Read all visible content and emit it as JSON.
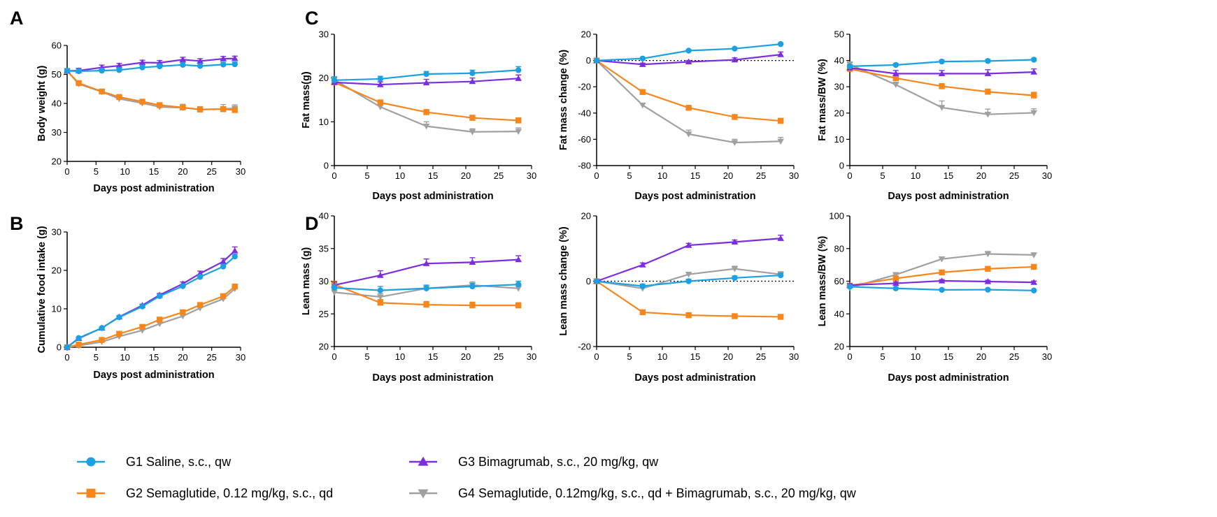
{
  "panel_letters": {
    "A": "A",
    "B": "B",
    "C": "C",
    "D": "D"
  },
  "legend": [
    {
      "id": "G1",
      "label": "G1 Saline, s.c., qw",
      "color": "#1ba1e2",
      "marker": "circle"
    },
    {
      "id": "G2",
      "label": "G2 Semaglutide, 0.12 mg/kg, s.c., qd",
      "color": "#f7861c",
      "marker": "square"
    },
    {
      "id": "G3",
      "label": "G3 Bimagrumab, s.c., 20 mg/kg, qw",
      "color": "#7b2ee0",
      "marker": "triangle-up"
    },
    {
      "id": "G4",
      "label": "G4 Semaglutide, 0.12mg/kg, s.c., qd + Bimagrumab, s.c., 20 mg/kg, qw",
      "color": "#a0a0a0",
      "marker": "triangle-down"
    }
  ],
  "chart_data": [
    {
      "id": "A",
      "type": "line",
      "xlabel": "Days post administration",
      "ylabel": "Body weight (g)",
      "xlim": [
        0,
        30
      ],
      "ylim": [
        20,
        60
      ],
      "xticks": [
        0,
        5,
        10,
        15,
        20,
        25,
        30
      ],
      "yticks": [
        20,
        30,
        40,
        50,
        60
      ],
      "x": [
        0,
        2,
        6,
        9,
        13,
        16,
        20,
        23,
        27,
        29
      ],
      "series": [
        {
          "name": "G1",
          "values": [
            51.2,
            51.1,
            51.3,
            51.5,
            52.4,
            52.8,
            53.3,
            52.9,
            53.4,
            53.5
          ],
          "err": [
            0.8,
            0.8,
            0.8,
            0.8,
            0.8,
            0.8,
            0.8,
            0.8,
            0.8,
            0.8
          ]
        },
        {
          "name": "G2",
          "values": [
            51.2,
            47.0,
            44.1,
            42.2,
            40.6,
            39.4,
            38.6,
            37.9,
            38.0,
            37.7
          ],
          "err": [
            0.8,
            0.8,
            0.8,
            0.8,
            0.8,
            0.8,
            0.8,
            0.8,
            0.8,
            0.8
          ]
        },
        {
          "name": "G3",
          "values": [
            51.2,
            51.3,
            52.4,
            53.0,
            54.1,
            54.0,
            55.1,
            54.6,
            55.4,
            55.5
          ],
          "err": [
            0.8,
            0.8,
            0.8,
            0.8,
            0.8,
            0.8,
            0.8,
            0.8,
            0.8,
            0.8
          ]
        },
        {
          "name": "G4",
          "values": [
            51.2,
            46.7,
            44.0,
            41.6,
            40.1,
            38.8,
            38.5,
            37.9,
            38.1,
            38.3
          ],
          "err": [
            0.8,
            0.8,
            0.8,
            0.8,
            0.8,
            0.8,
            1.2,
            1.0,
            1.5,
            1.2
          ]
        }
      ]
    },
    {
      "id": "B",
      "type": "line",
      "xlabel": "Days post administration",
      "ylabel": "Cumulative food intake (g)",
      "xlim": [
        0,
        30
      ],
      "ylim": [
        0,
        30
      ],
      "xticks": [
        0,
        5,
        10,
        15,
        20,
        25,
        30
      ],
      "yticks": [
        0,
        10,
        20,
        30
      ],
      "x": [
        0,
        2,
        6,
        9,
        13,
        16,
        20,
        23,
        27,
        29
      ],
      "series": [
        {
          "name": "G1",
          "values": [
            0,
            2.4,
            5.0,
            7.8,
            10.6,
            13.3,
            15.9,
            18.3,
            21.0,
            23.6
          ],
          "err": [
            0,
            0.2,
            0.2,
            0.3,
            0.3,
            0.4,
            0.5,
            0.5,
            0.6,
            0.6
          ]
        },
        {
          "name": "G2",
          "values": [
            0,
            0.7,
            1.9,
            3.5,
            5.3,
            7.2,
            9.1,
            11.0,
            13.3,
            15.8
          ],
          "err": [
            0,
            0.2,
            0.2,
            0.3,
            0.3,
            0.4,
            0.4,
            0.5,
            0.5,
            0.6
          ]
        },
        {
          "name": "G3",
          "values": [
            0,
            2.3,
            5.0,
            7.9,
            10.9,
            13.6,
            16.5,
            19.2,
            22.3,
            25.1
          ],
          "err": [
            0,
            0.2,
            0.2,
            0.3,
            0.3,
            0.4,
            0.5,
            0.6,
            0.8,
            1.0
          ]
        },
        {
          "name": "G4",
          "values": [
            0,
            0.4,
            1.4,
            2.8,
            4.4,
            6.1,
            8.1,
            10.2,
            12.6,
            15.2
          ],
          "err": [
            0,
            0.2,
            0.2,
            0.3,
            0.3,
            0.4,
            0.4,
            0.5,
            0.5,
            0.6
          ]
        }
      ]
    },
    {
      "id": "C1",
      "type": "line",
      "xlabel": "Days post administration",
      "ylabel": "Fat mass(g)",
      "xlim": [
        0,
        30
      ],
      "ylim": [
        0,
        30
      ],
      "xticks": [
        0,
        5,
        10,
        15,
        20,
        25,
        30
      ],
      "yticks": [
        0,
        10,
        20,
        30
      ],
      "x": [
        0,
        7,
        14,
        21,
        28
      ],
      "series": [
        {
          "name": "G1",
          "values": [
            19.5,
            19.8,
            20.9,
            21.1,
            21.8
          ],
          "err": [
            0.8,
            0.6,
            0.6,
            0.7,
            0.8
          ]
        },
        {
          "name": "G2",
          "values": [
            19.0,
            14.4,
            12.2,
            10.9,
            10.3
          ],
          "err": [
            0.6,
            0.6,
            0.6,
            0.6,
            0.6
          ]
        },
        {
          "name": "G3",
          "values": [
            19.0,
            18.5,
            18.9,
            19.2,
            19.9
          ],
          "err": [
            0.6,
            0.6,
            0.8,
            0.8,
            0.8
          ]
        },
        {
          "name": "G4",
          "values": [
            19.6,
            13.4,
            9.0,
            7.7,
            7.8
          ],
          "err": [
            0.6,
            0.6,
            1.0,
            0.7,
            0.8
          ]
        }
      ]
    },
    {
      "id": "C2",
      "type": "line",
      "xlabel": "Days post administration",
      "ylabel": "Fat mass change (%)",
      "xlim": [
        0,
        30
      ],
      "ylim": [
        -80,
        20
      ],
      "xticks": [
        0,
        5,
        10,
        15,
        20,
        25,
        30
      ],
      "yticks": [
        -80,
        -60,
        -40,
        -20,
        0,
        20
      ],
      "reference_line": 0,
      "x": [
        0,
        7,
        14,
        21,
        28
      ],
      "series": [
        {
          "name": "G1",
          "values": [
            0,
            1.5,
            7.5,
            9.0,
            12.5
          ],
          "err": [
            0,
            0.8,
            0.8,
            0.8,
            0.8
          ]
        },
        {
          "name": "G2",
          "values": [
            0,
            -24.0,
            -36.0,
            -43.0,
            -46.0
          ],
          "err": [
            0,
            1.0,
            1.0,
            1.2,
            2.0
          ]
        },
        {
          "name": "G3",
          "values": [
            0,
            -3.0,
            -1.0,
            0.5,
            4.5
          ],
          "err": [
            0,
            1.0,
            1.0,
            1.5,
            2.0
          ]
        },
        {
          "name": "G4",
          "values": [
            0,
            -34.0,
            -56.0,
            -62.5,
            -61.5
          ],
          "err": [
            0,
            1.5,
            3.0,
            2.5,
            3.0
          ]
        }
      ]
    },
    {
      "id": "C3",
      "type": "line",
      "xlabel": "Days post administration",
      "ylabel": "Fat mass/BW (%)",
      "xlim": [
        0,
        30
      ],
      "ylim": [
        0,
        50
      ],
      "xticks": [
        0,
        5,
        10,
        15,
        20,
        25,
        30
      ],
      "yticks": [
        0,
        10,
        20,
        30,
        40,
        50
      ],
      "x": [
        0,
        7,
        14,
        21,
        28
      ],
      "series": [
        {
          "name": "G1",
          "values": [
            37.8,
            38.3,
            39.6,
            39.8,
            40.3
          ],
          "err": [
            0.6,
            0.6,
            0.6,
            0.6,
            0.6
          ]
        },
        {
          "name": "G2",
          "values": [
            36.8,
            33.3,
            30.2,
            28.1,
            26.7
          ],
          "err": [
            1.0,
            1.0,
            1.0,
            1.0,
            1.2
          ]
        },
        {
          "name": "G3",
          "values": [
            37.2,
            35.0,
            35.0,
            35.0,
            35.6
          ],
          "err": [
            1.0,
            1.2,
            1.2,
            1.5,
            1.2
          ]
        },
        {
          "name": "G4",
          "values": [
            38.5,
            30.8,
            22.1,
            19.5,
            20.1
          ],
          "err": [
            1.0,
            1.0,
            2.5,
            2.0,
            1.5
          ]
        }
      ]
    },
    {
      "id": "D1",
      "type": "line",
      "xlabel": "Days post administration",
      "ylabel": "Lean mass (g)",
      "xlim": [
        0,
        30
      ],
      "ylim": [
        20,
        40
      ],
      "xticks": [
        0,
        5,
        10,
        15,
        20,
        25,
        30
      ],
      "yticks": [
        20,
        25,
        30,
        35,
        40
      ],
      "x": [
        0,
        7,
        14,
        21,
        28
      ],
      "series": [
        {
          "name": "G1",
          "values": [
            29.0,
            28.6,
            28.9,
            29.2,
            29.5
          ],
          "err": [
            0.5,
            0.6,
            0.5,
            0.5,
            0.5
          ]
        },
        {
          "name": "G2",
          "values": [
            29.5,
            26.7,
            26.4,
            26.3,
            26.3
          ],
          "err": [
            0.5,
            0.5,
            0.5,
            0.5,
            0.4
          ]
        },
        {
          "name": "G3",
          "values": [
            29.4,
            30.9,
            32.7,
            32.9,
            33.3
          ],
          "err": [
            0.5,
            0.7,
            0.7,
            0.7,
            0.6
          ]
        },
        {
          "name": "G4",
          "values": [
            28.3,
            27.6,
            28.9,
            29.4,
            28.9
          ],
          "err": [
            0.5,
            0.5,
            0.5,
            0.5,
            0.5
          ]
        }
      ]
    },
    {
      "id": "D2",
      "type": "line",
      "xlabel": "Days post administration",
      "ylabel": "Lean mass change (%)",
      "xlim": [
        0,
        30
      ],
      "ylim": [
        -20,
        20
      ],
      "xticks": [
        0,
        5,
        10,
        15,
        20,
        25,
        30
      ],
      "yticks": [
        -20,
        0,
        20
      ],
      "reference_line": 0,
      "x": [
        0,
        7,
        14,
        21,
        28
      ],
      "series": [
        {
          "name": "G1",
          "values": [
            0,
            -1.5,
            0,
            1.0,
            1.8
          ],
          "err": [
            0,
            0.6,
            0.6,
            0.6,
            0.6
          ]
        },
        {
          "name": "G2",
          "values": [
            0,
            -9.5,
            -10.4,
            -10.7,
            -10.9
          ],
          "err": [
            0,
            0.5,
            0.5,
            0.5,
            0.5
          ]
        },
        {
          "name": "G3",
          "values": [
            0,
            5.0,
            11.0,
            12.0,
            13.1
          ],
          "err": [
            0,
            0.6,
            0.6,
            0.6,
            1.0
          ]
        },
        {
          "name": "G4",
          "values": [
            0,
            -2.2,
            2.1,
            3.8,
            2.1
          ],
          "err": [
            0,
            0.6,
            0.6,
            0.8,
            0.8
          ]
        }
      ]
    },
    {
      "id": "D3",
      "type": "line",
      "xlabel": "Days post administration",
      "ylabel": "Lean mass/BW (%)",
      "xlim": [
        0,
        30
      ],
      "ylim": [
        20,
        100
      ],
      "xticks": [
        0,
        5,
        10,
        15,
        20,
        25,
        30
      ],
      "yticks": [
        20,
        40,
        60,
        80,
        100
      ],
      "x": [
        0,
        7,
        14,
        21,
        28
      ],
      "series": [
        {
          "name": "G1",
          "values": [
            56.6,
            55.6,
            54.7,
            54.8,
            54.3
          ],
          "err": [
            0.6,
            0.6,
            0.6,
            0.6,
            0.6
          ]
        },
        {
          "name": "G2",
          "values": [
            57.3,
            61.7,
            65.4,
            67.6,
            68.8
          ],
          "err": [
            0.8,
            0.8,
            0.8,
            1.0,
            1.0
          ]
        },
        {
          "name": "G3",
          "values": [
            57.6,
            58.7,
            60.2,
            59.8,
            59.3
          ],
          "err": [
            0.8,
            0.8,
            0.8,
            0.8,
            0.8
          ]
        },
        {
          "name": "G4",
          "values": [
            56.0,
            64.0,
            73.6,
            76.7,
            76.1
          ],
          "err": [
            0.8,
            1.0,
            1.2,
            1.5,
            1.2
          ]
        }
      ]
    }
  ]
}
